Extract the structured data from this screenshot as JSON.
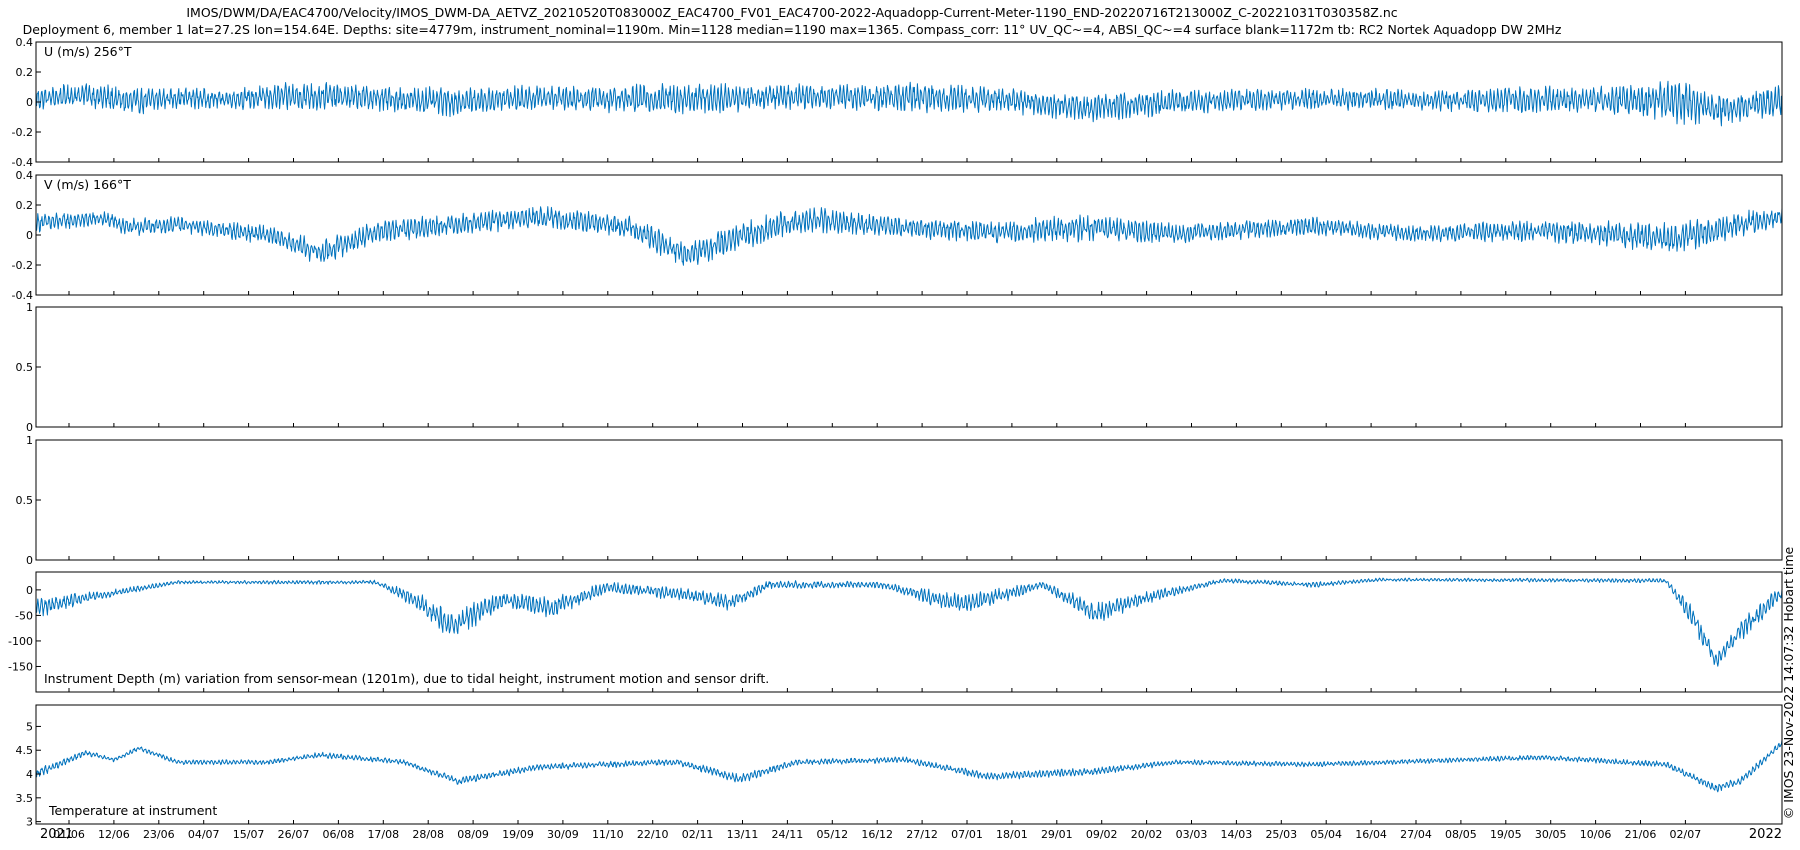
{
  "title_line1": "IMOS/DWM/DA/EAC4700/Velocity/IMOS_DWM-DA_AETVZ_20210520T083000Z_EAC4700_FV01_EAC4700-2022-Aquadopp-Current-Meter-1190_END-20220716T213000Z_C-20221031T030358Z.nc",
  "title_line2": "Deployment 6, member 1 lat=27.2S lon=154.64E. Depths: site=4779m, instrument_nominal=1190m. Min=1128 median=1190 max=1365. Compass_corr: 11° UV_QC~=4, ABSI_QC~=4 surface blank=1172m tb: RC2 Nortek Aquadopp DW 2MHz",
  "side_label": "© IMOS 23-Nov-2022 14:07:32 Hobart time",
  "colors": {
    "line": "#0072bd",
    "axes": "#000000",
    "background": "#ffffff"
  },
  "chart_data": {
    "type": "line",
    "x_axis": {
      "ticks": [
        "01/06",
        "12/06",
        "23/06",
        "04/07",
        "15/07",
        "26/07",
        "06/08",
        "17/08",
        "28/08",
        "08/09",
        "19/09",
        "30/09",
        "11/10",
        "22/10",
        "02/11",
        "13/11",
        "24/11",
        "05/12",
        "16/12",
        "27/12",
        "07/01",
        "18/01",
        "29/01",
        "09/02",
        "20/02",
        "03/03",
        "14/03",
        "25/03",
        "05/04",
        "16/04",
        "27/04",
        "08/05",
        "19/05",
        "30/05",
        "10/06",
        "21/06",
        "02/07"
      ],
      "year_start": "2021",
      "year_end": "2022",
      "range": [
        "2021-05-20",
        "2022-07-16"
      ]
    },
    "panels": [
      {
        "id": "u",
        "label": "U (m/s) 256°T",
        "ylim": [
          -0.4,
          0.4
        ],
        "yticks": [
          "-0.4",
          "-0.2",
          "0",
          "0.2",
          "0.4"
        ],
        "envelope": [
          {
            "x": "2021-05-20",
            "mean": 0.02,
            "amp": 0.07
          },
          {
            "x": "2021-06-01",
            "mean": 0.05,
            "amp": 0.08
          },
          {
            "x": "2021-06-12",
            "mean": 0.0,
            "amp": 0.09
          },
          {
            "x": "2021-06-23",
            "mean": 0.03,
            "amp": 0.07
          },
          {
            "x": "2021-07-04",
            "mean": 0.02,
            "amp": 0.06
          },
          {
            "x": "2021-07-26",
            "mean": 0.04,
            "amp": 0.1
          },
          {
            "x": "2021-08-06",
            "mean": 0.03,
            "amp": 0.08
          },
          {
            "x": "2021-08-28",
            "mean": 0.0,
            "amp": 0.09
          },
          {
            "x": "2021-09-19",
            "mean": 0.03,
            "amp": 0.08
          },
          {
            "x": "2021-10-11",
            "mean": 0.02,
            "amp": 0.09
          },
          {
            "x": "2021-11-02",
            "mean": 0.03,
            "amp": 0.1
          },
          {
            "x": "2021-11-24",
            "mean": 0.04,
            "amp": 0.08
          },
          {
            "x": "2021-12-16",
            "mean": 0.03,
            "amp": 0.1
          },
          {
            "x": "2022-01-07",
            "mean": 0.02,
            "amp": 0.08
          },
          {
            "x": "2022-01-29",
            "mean": -0.04,
            "amp": 0.09
          },
          {
            "x": "2022-02-20",
            "mean": 0.0,
            "amp": 0.08
          },
          {
            "x": "2022-03-14",
            "mean": 0.02,
            "amp": 0.07
          },
          {
            "x": "2022-04-05",
            "mean": 0.02,
            "amp": 0.07
          },
          {
            "x": "2022-04-27",
            "mean": 0.01,
            "amp": 0.07
          },
          {
            "x": "2022-05-19",
            "mean": 0.02,
            "amp": 0.09
          },
          {
            "x": "2022-06-10",
            "mean": 0.01,
            "amp": 0.1
          },
          {
            "x": "2022-06-21",
            "mean": 0.0,
            "amp": 0.15
          },
          {
            "x": "2022-07-02",
            "mean": -0.05,
            "amp": 0.1
          },
          {
            "x": "2022-07-16",
            "mean": 0.02,
            "amp": 0.1
          }
        ]
      },
      {
        "id": "v",
        "label": "V (m/s) 166°T",
        "ylim": [
          -0.4,
          0.4
        ],
        "yticks": [
          "-0.4",
          "-0.2",
          "0",
          "0.2",
          "0.4"
        ],
        "envelope": [
          {
            "x": "2021-05-20",
            "mean": 0.08,
            "amp": 0.06
          },
          {
            "x": "2021-06-05",
            "mean": 0.11,
            "amp": 0.05
          },
          {
            "x": "2021-06-12",
            "mean": 0.05,
            "amp": 0.06
          },
          {
            "x": "2021-06-23",
            "mean": 0.07,
            "amp": 0.05
          },
          {
            "x": "2021-07-15",
            "mean": 0.0,
            "amp": 0.06
          },
          {
            "x": "2021-07-28",
            "mean": -0.12,
            "amp": 0.08
          },
          {
            "x": "2021-08-10",
            "mean": 0.02,
            "amp": 0.07
          },
          {
            "x": "2021-08-28",
            "mean": 0.07,
            "amp": 0.07
          },
          {
            "x": "2021-09-19",
            "mean": 0.12,
            "amp": 0.07
          },
          {
            "x": "2021-10-11",
            "mean": 0.05,
            "amp": 0.07
          },
          {
            "x": "2021-10-24",
            "mean": -0.14,
            "amp": 0.09
          },
          {
            "x": "2021-11-13",
            "mean": 0.05,
            "amp": 0.09
          },
          {
            "x": "2021-11-24",
            "mean": 0.1,
            "amp": 0.08
          },
          {
            "x": "2021-12-16",
            "mean": 0.05,
            "amp": 0.07
          },
          {
            "x": "2022-01-07",
            "mean": 0.02,
            "amp": 0.07
          },
          {
            "x": "2022-01-29",
            "mean": 0.05,
            "amp": 0.09
          },
          {
            "x": "2022-02-20",
            "mean": 0.01,
            "amp": 0.06
          },
          {
            "x": "2022-03-25",
            "mean": 0.06,
            "amp": 0.06
          },
          {
            "x": "2022-04-16",
            "mean": 0.01,
            "amp": 0.05
          },
          {
            "x": "2022-05-19",
            "mean": 0.03,
            "amp": 0.07
          },
          {
            "x": "2022-06-21",
            "mean": -0.02,
            "amp": 0.1
          },
          {
            "x": "2022-07-16",
            "mean": 0.13,
            "amp": 0.07
          }
        ]
      },
      {
        "id": "empty1",
        "label": "",
        "ylim": [
          0,
          1
        ],
        "yticks": [
          "0",
          "0.5",
          "1"
        ],
        "envelope": []
      },
      {
        "id": "empty2",
        "label": "",
        "ylim": [
          0,
          1
        ],
        "yticks": [
          "0",
          "0.5",
          "1"
        ],
        "envelope": []
      },
      {
        "id": "depth",
        "label": "Instrument Depth (m) variation from sensor-mean (1201m), due to tidal height, instrument motion and sensor drift.",
        "ylim": [
          -200,
          35
        ],
        "yticks": [
          "0",
          "-50",
          "-100",
          "-150"
        ],
        "reversed": true,
        "envelope": [
          {
            "x": "2021-05-20",
            "mean": -35,
            "amp": 20
          },
          {
            "x": "2021-06-05",
            "mean": -10,
            "amp": 8
          },
          {
            "x": "2021-06-23",
            "mean": 15,
            "amp": 3
          },
          {
            "x": "2021-08-10",
            "mean": 15,
            "amp": 4
          },
          {
            "x": "2021-08-20",
            "mean": -20,
            "amp": 15
          },
          {
            "x": "2021-08-28",
            "mean": -70,
            "amp": 30
          },
          {
            "x": "2021-09-10",
            "mean": -20,
            "amp": 15
          },
          {
            "x": "2021-09-22",
            "mean": -35,
            "amp": 20
          },
          {
            "x": "2021-10-05",
            "mean": 5,
            "amp": 10
          },
          {
            "x": "2021-10-25",
            "mean": -10,
            "amp": 12
          },
          {
            "x": "2021-11-04",
            "mean": -25,
            "amp": 15
          },
          {
            "x": "2021-11-13",
            "mean": 10,
            "amp": 8
          },
          {
            "x": "2021-12-10",
            "mean": 10,
            "amp": 6
          },
          {
            "x": "2021-12-30",
            "mean": -30,
            "amp": 20
          },
          {
            "x": "2022-01-18",
            "mean": 10,
            "amp": 8
          },
          {
            "x": "2022-01-31",
            "mean": -45,
            "amp": 20
          },
          {
            "x": "2022-02-15",
            "mean": -10,
            "amp": 10
          },
          {
            "x": "2022-03-03",
            "mean": 18,
            "amp": 4
          },
          {
            "x": "2022-03-25",
            "mean": 10,
            "amp": 5
          },
          {
            "x": "2022-04-10",
            "mean": 20,
            "amp": 3
          },
          {
            "x": "2022-06-18",
            "mean": 18,
            "amp": 4
          },
          {
            "x": "2022-06-25",
            "mean": -60,
            "amp": 25
          },
          {
            "x": "2022-06-30",
            "mean": -140,
            "amp": 15
          },
          {
            "x": "2022-07-06",
            "mean": -80,
            "amp": 20
          },
          {
            "x": "2022-07-16",
            "mean": -5,
            "amp": 15
          }
        ]
      },
      {
        "id": "temp",
        "label": "Temperature at instrument",
        "ylim": [
          2.95,
          5.45
        ],
        "yticks": [
          "3",
          "3.5",
          "4",
          "4.5",
          "5"
        ],
        "envelope": [
          {
            "x": "2021-05-20",
            "mean": 4.0,
            "amp": 0.1
          },
          {
            "x": "2021-06-01",
            "mean": 4.45,
            "amp": 0.06
          },
          {
            "x": "2021-06-08",
            "mean": 4.3,
            "amp": 0.05
          },
          {
            "x": "2021-06-14",
            "mean": 4.55,
            "amp": 0.05
          },
          {
            "x": "2021-06-23",
            "mean": 4.25,
            "amp": 0.05
          },
          {
            "x": "2021-07-15",
            "mean": 4.25,
            "amp": 0.05
          },
          {
            "x": "2021-07-28",
            "mean": 4.4,
            "amp": 0.06
          },
          {
            "x": "2021-08-17",
            "mean": 4.25,
            "amp": 0.05
          },
          {
            "x": "2021-08-30",
            "mean": 3.85,
            "amp": 0.08
          },
          {
            "x": "2021-09-19",
            "mean": 4.15,
            "amp": 0.07
          },
          {
            "x": "2021-10-22",
            "mean": 4.25,
            "amp": 0.06
          },
          {
            "x": "2021-11-06",
            "mean": 3.9,
            "amp": 0.1
          },
          {
            "x": "2021-11-20",
            "mean": 4.25,
            "amp": 0.06
          },
          {
            "x": "2021-12-16",
            "mean": 4.3,
            "amp": 0.06
          },
          {
            "x": "2022-01-05",
            "mean": 3.95,
            "amp": 0.08
          },
          {
            "x": "2022-01-30",
            "mean": 4.05,
            "amp": 0.08
          },
          {
            "x": "2022-02-20",
            "mean": 4.25,
            "amp": 0.05
          },
          {
            "x": "2022-03-25",
            "mean": 4.2,
            "amp": 0.05
          },
          {
            "x": "2022-05-19",
            "mean": 4.35,
            "amp": 0.05
          },
          {
            "x": "2022-06-18",
            "mean": 4.2,
            "amp": 0.06
          },
          {
            "x": "2022-06-30",
            "mean": 3.7,
            "amp": 0.08
          },
          {
            "x": "2022-07-06",
            "mean": 3.85,
            "amp": 0.08
          },
          {
            "x": "2022-07-16",
            "mean": 4.65,
            "amp": 0.07
          }
        ]
      }
    ]
  }
}
